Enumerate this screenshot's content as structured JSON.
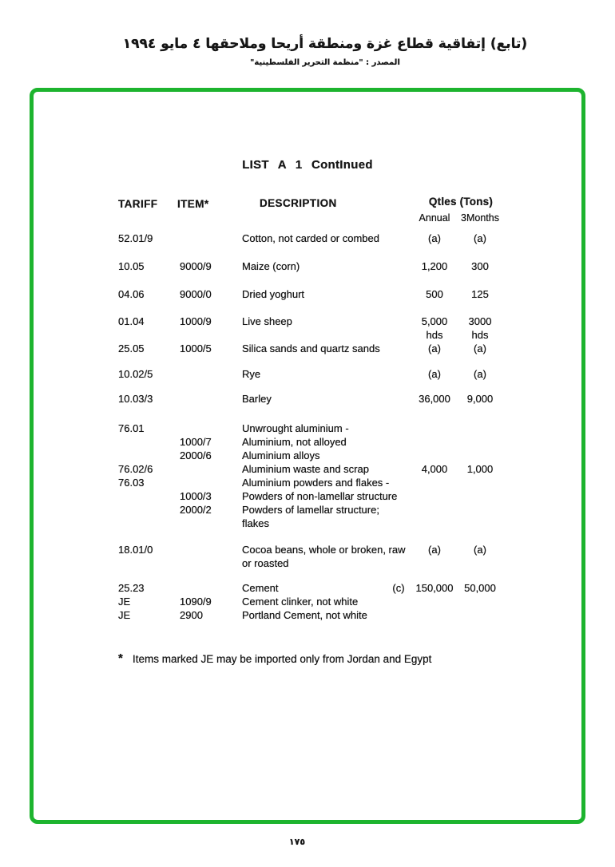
{
  "page": {
    "header": {
      "title_ar": "(تابع) إتفاقية قطاع غزة ومنطقة أريحا وملاحقها ٤ مايو ١٩٩٤",
      "source_ar": "المصدر : \"منظمة التحرير الفلسطينية\""
    },
    "page_number_ar": "١٧٥"
  },
  "colors": {
    "highlight_border_green": "#1db42e",
    "text": "#161616"
  },
  "document": {
    "title": "LIST A 1 ContInued",
    "columns": {
      "tariff": "TARIFF",
      "item": "ITEM*",
      "description": "DESCRIPTION",
      "qty_group": "Qtles (Tons)",
      "annual": "Annual",
      "three_months": "3Months"
    },
    "table": {
      "lines": [
        {
          "tariff": "52.01/9",
          "item": "",
          "desc": "Cotton, not carded or combed",
          "note": "",
          "annual": "(a)",
          "three_months": "(a)",
          "gap": 0
        },
        {
          "tariff": "10.05",
          "item": "9000/9",
          "desc": "Maize (corn)",
          "note": "",
          "annual": "1,200",
          "three_months": "300",
          "gap": 18
        },
        {
          "tariff": "04.06",
          "item": "9000/0",
          "desc": "Dried yoghurt",
          "note": "",
          "annual": "500",
          "three_months": "125",
          "gap": 18
        },
        {
          "tariff": "01.04",
          "item": "1000/9",
          "desc": "Live sheep",
          "note": "",
          "annual": "5,000",
          "three_months": "3000",
          "gap": 17
        },
        {
          "tariff": "",
          "item": "",
          "desc": "",
          "note": "",
          "annual": "hds",
          "three_months": "hds",
          "gap": 0
        },
        {
          "tariff": "25.05",
          "item": "1000/5",
          "desc": "Silica sands and quartz sands",
          "note": "",
          "annual": "(a)",
          "three_months": "(a)",
          "gap": 0
        },
        {
          "tariff": "10.02/5",
          "item": "",
          "desc": "Rye",
          "note": "",
          "annual": "(a)",
          "three_months": "(a)",
          "gap": 15
        },
        {
          "tariff": "10.03/3",
          "item": "",
          "desc": "Barley",
          "note": "",
          "annual": "36,000",
          "three_months": "9,000",
          "gap": 14
        },
        {
          "tariff": "76.01",
          "item": "",
          "desc": "Unwrought aluminium -",
          "note": "",
          "annual": "",
          "three_months": "",
          "gap": 20
        },
        {
          "tariff": "",
          "item": "1000/7",
          "desc": "Aluminium, not alloyed",
          "note": "",
          "annual": "",
          "three_months": "",
          "gap": 0
        },
        {
          "tariff": "",
          "item": "2000/6",
          "desc": "Aluminium alloys",
          "note": "",
          "annual": "",
          "three_months": "",
          "gap": 0
        },
        {
          "tariff": "76.02/6",
          "item": "",
          "desc": "Aluminium waste and scrap",
          "note": "",
          "annual": "4,000",
          "three_months": "1,000",
          "gap": 0
        },
        {
          "tariff": "76.03",
          "item": "",
          "desc": "Aluminium powders and flakes -",
          "note": "",
          "annual": "",
          "three_months": "",
          "gap": 0
        },
        {
          "tariff": "",
          "item": "1000/3",
          "desc": "Powders of non-lamellar structure",
          "note": "",
          "annual": "",
          "three_months": "",
          "gap": 0
        },
        {
          "tariff": "",
          "item": "2000/2",
          "desc": "Powders of lamellar structure;",
          "note": "",
          "annual": "",
          "three_months": "",
          "gap": 0
        },
        {
          "tariff": "",
          "item": "",
          "desc": "flakes",
          "note": "",
          "annual": "",
          "three_months": "",
          "gap": 0
        },
        {
          "tariff": "18.01/0",
          "item": "",
          "desc": "Cocoa beans, whole or broken, raw",
          "note": "",
          "annual": "(a)",
          "three_months": "(a)",
          "gap": 16
        },
        {
          "tariff": "",
          "item": "",
          "desc": "or roasted",
          "note": "",
          "annual": "",
          "three_months": "",
          "gap": 0
        },
        {
          "tariff": "25.23",
          "item": "",
          "desc": "Cement",
          "note": "(c)",
          "annual": "150,000",
          "three_months": "50,000",
          "gap": 14
        },
        {
          "tariff": "JE",
          "item": "1090/9",
          "desc": "Cement clinker, not white",
          "note": "",
          "annual": "",
          "three_months": "",
          "gap": 0
        },
        {
          "tariff": "JE",
          "item": "2900",
          "desc": "Portland Cement, not white",
          "note": "",
          "annual": "",
          "three_months": "",
          "gap": 0
        }
      ]
    },
    "footnote_marker": "*",
    "footnote": "Items marked JE may be imported only from Jordan and Egypt"
  }
}
